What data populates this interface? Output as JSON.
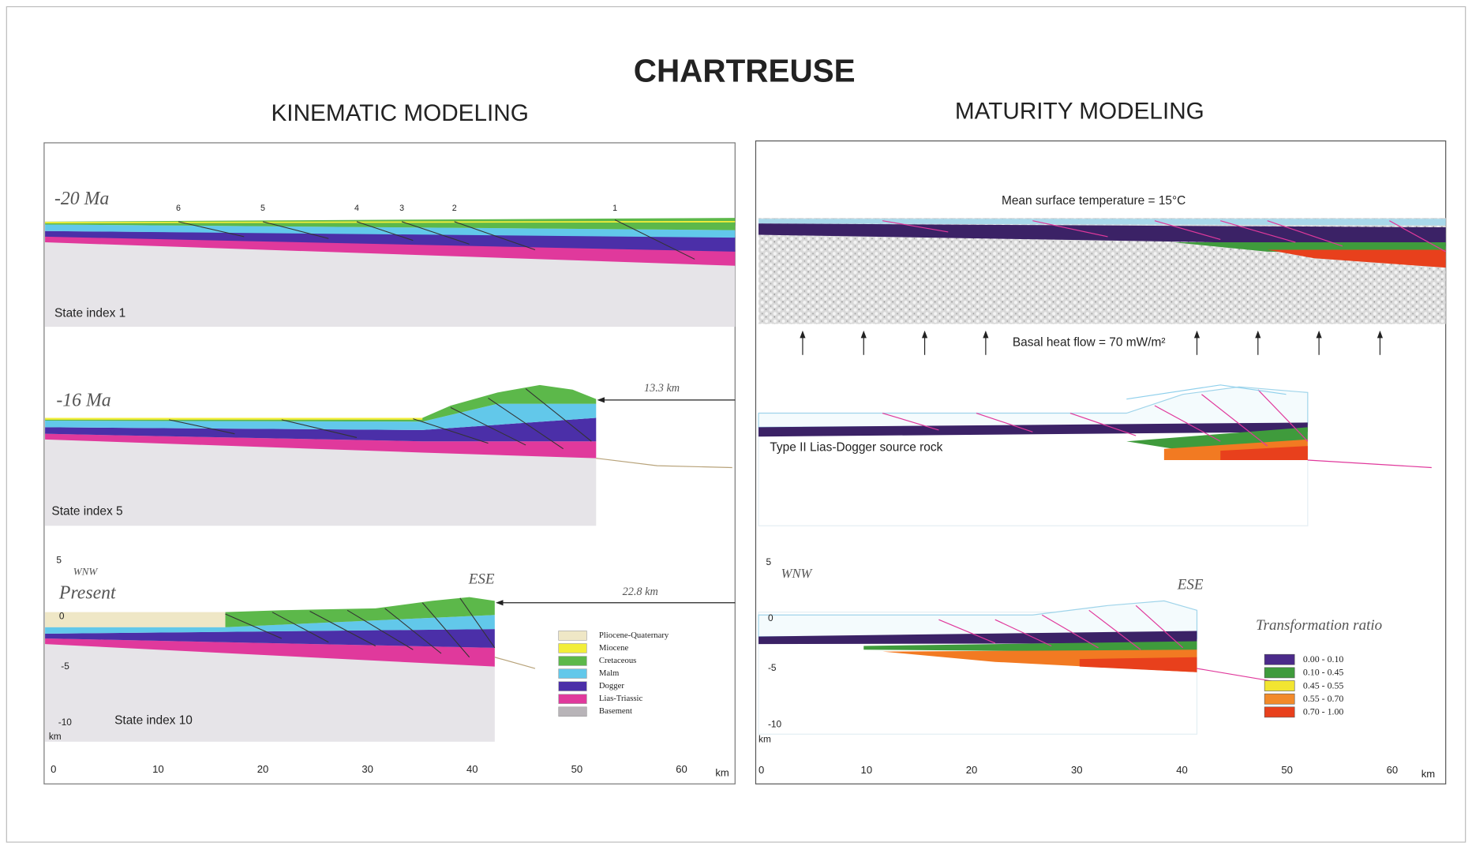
{
  "title": "CHARTREUSE",
  "kinematic": {
    "heading": "KINEMATIC MODELING",
    "stages": [
      {
        "age": "-20 Ma",
        "faults": [
          "6",
          "5",
          "4",
          "3",
          "2",
          "1"
        ],
        "state": "State index 1"
      },
      {
        "age": "-16 Ma",
        "shortening": "13.3 km",
        "state": "State index 5"
      },
      {
        "age": "Present",
        "shortening": "22.8 km",
        "state": "State index 10",
        "west": "WNW",
        "east": "ESE"
      }
    ],
    "depth_ticks": [
      "5",
      "0",
      "-5",
      "-10"
    ],
    "depth_unit": "km",
    "x_ticks": [
      "0",
      "10",
      "20",
      "30",
      "40",
      "50",
      "60"
    ],
    "x_unit": "km",
    "legend": [
      "Pliocene-Quaternary",
      "Miocene",
      "Cretaceous",
      "Malm",
      "Dogger",
      "Lias-Triassic",
      "Basement"
    ]
  },
  "maturity": {
    "heading": "MATURITY MODELING",
    "surface": "Mean surface temperature = 15°C",
    "heat_flow": "Basal heat flow = 70 mW/m²",
    "source_rock": "Type II Lias-Dogger source rock",
    "west": "WNW",
    "east": "ESE",
    "depth_ticks": [
      "5",
      "0",
      "-5",
      "-10"
    ],
    "depth_unit": "km",
    "x_ticks": [
      "0",
      "10",
      "20",
      "30",
      "40",
      "50",
      "60"
    ],
    "x_unit": "km",
    "legend_title": "Transformation ratio",
    "legend": [
      "0.00 - 0.10",
      "0.10 - 0.45",
      "0.45 - 0.55",
      "0.55 - 0.70",
      "0.70 - 1.00"
    ]
  }
}
